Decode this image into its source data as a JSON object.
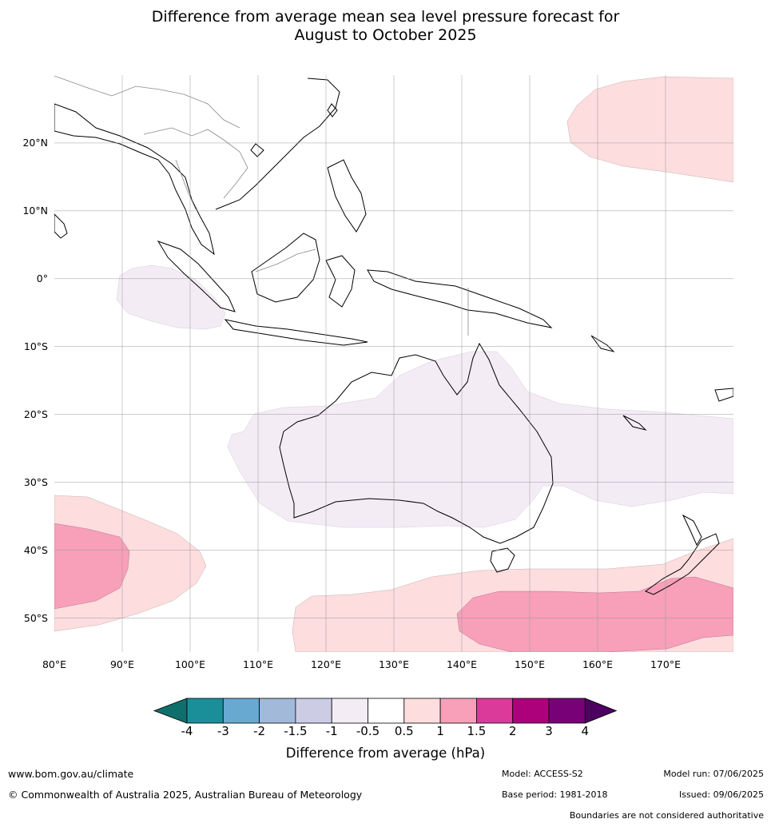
{
  "title_line1": "Difference from average mean sea level pressure forecast for",
  "title_line2": "August to October 2025",
  "map": {
    "lon_range": [
      80,
      180
    ],
    "lat_range": [
      -55,
      30
    ],
    "lat_labels": [
      "20°N",
      "10°N",
      "0°",
      "10°S",
      "20°S",
      "30°S",
      "40°S",
      "50°S"
    ],
    "lon_labels": [
      "80°E",
      "90°E",
      "100°E",
      "110°E",
      "120°E",
      "130°E",
      "140°E",
      "150°E",
      "160°E",
      "170°E"
    ],
    "anomaly_regions": [
      {
        "region": "North-west Pacific",
        "category": "0.5 to 1",
        "color": "#fdddde"
      },
      {
        "region": "Eastern Indian Ocean near equator",
        "category": "-1 to -0.5",
        "color": "#f3ecf5"
      },
      {
        "region": "Australia and subtropical belt",
        "category": "-1 to -0.5",
        "color": "#f3ecf5"
      },
      {
        "region": "Southern Indian Ocean",
        "category": "0.5 to 1",
        "color": "#fdddde"
      },
      {
        "region": "Southern Indian Ocean core",
        "category": "1 to 1.5",
        "color": "#f89fba"
      },
      {
        "region": "Southern Ocean south of Australia",
        "category": "0.5 to 1",
        "color": "#fdddde"
      },
      {
        "region": "Tasman Sea / south of New Zealand",
        "category": "1 to 1.5",
        "color": "#f89fba"
      }
    ]
  },
  "colorbar": {
    "ticks": [
      "-4",
      "-3",
      "-2",
      "-1.5",
      "-1",
      "-0.5",
      "0.5",
      "1",
      "1.5",
      "2",
      "3",
      "4"
    ],
    "colors": [
      "#0f6f6d",
      "#1a8f9a",
      "#68a9d1",
      "#a3b9da",
      "#cccde5",
      "#f3ecf5",
      "#ffffff",
      "#fdddde",
      "#f89fba",
      "#db3a9b",
      "#ad007b",
      "#780178",
      "#4d0060"
    ],
    "label": "Difference from average (hPa)"
  },
  "footer": {
    "website": "www.bom.gov.au/climate",
    "copyright": "© Commonwealth of Australia 2025, Australian Bureau of Meteorology",
    "model": "Model: ACCESS-S2",
    "base_period": "Base period: 1981-2018",
    "model_run": "Model run: 07/06/2025",
    "issued": "Issued: 09/06/2025",
    "disclaimer": "Boundaries are not considered authoritative"
  }
}
